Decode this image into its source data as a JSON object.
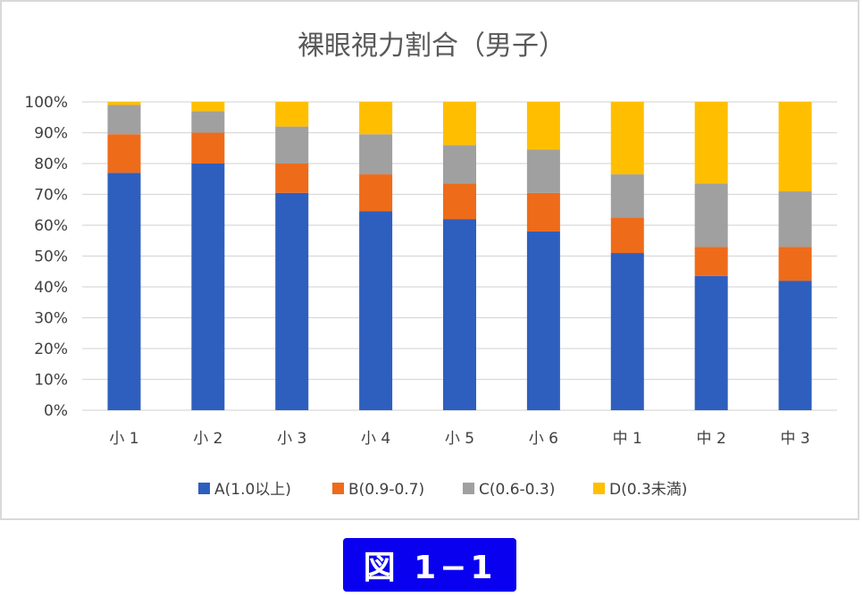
{
  "chart_data": {
    "type": "bar",
    "stacked": true,
    "title": "裸眼視力割合（男子）",
    "categories": [
      "小 1",
      "小 2",
      "小 3",
      "小 4",
      "小 5",
      "小 6",
      "中 1",
      "中 2",
      "中 3"
    ],
    "yticks": [
      "0%",
      "10%",
      "20%",
      "30%",
      "40%",
      "50%",
      "60%",
      "70%",
      "80%",
      "90%",
      "100%"
    ],
    "ylim": [
      0,
      100
    ],
    "grid": true,
    "legend_position": "bottom",
    "series": [
      {
        "name": "A(1.0以上)",
        "color": "#2e5fbe",
        "values": [
          77,
          80,
          70.5,
          64.5,
          62,
          58,
          51,
          43.5,
          42
        ]
      },
      {
        "name": "B(0.9-0.7)",
        "color": "#ee6b1a",
        "values": [
          12.5,
          10,
          9.5,
          12,
          11.5,
          12.5,
          11.5,
          9.5,
          11
        ]
      },
      {
        "name": "C(0.6-0.3)",
        "color": "#a0a0a0",
        "values": [
          9.5,
          7,
          12,
          13,
          12.5,
          14,
          14,
          20.5,
          18
        ]
      },
      {
        "name": "D(0.3未満)",
        "color": "#ffbf00",
        "values": [
          1,
          3,
          8,
          10.5,
          14,
          15.5,
          23.5,
          26.5,
          29
        ]
      }
    ]
  },
  "caption": "図 1−1"
}
